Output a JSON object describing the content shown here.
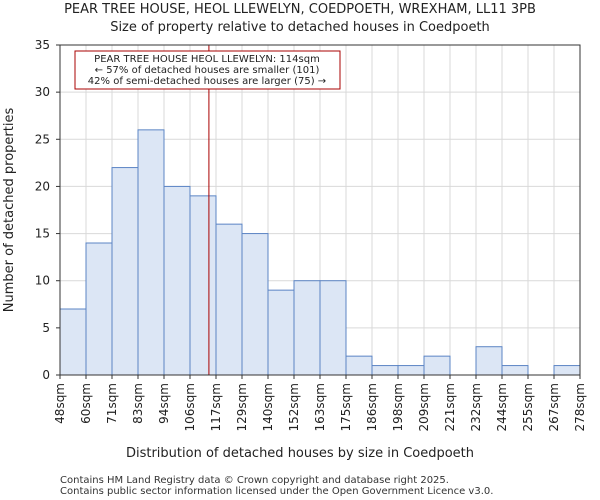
{
  "chart_data": {
    "type": "bar",
    "title_line1": "PEAR TREE HOUSE, HEOL LLEWELYN, COEDPOETH, WREXHAM, LL11 3PB",
    "title_line2": "Size of property relative to detached houses in Coedpoeth",
    "xlabel": "Distribution of detached houses by size in Coedpoeth",
    "ylabel": "Number of detached properties",
    "bin_edges": [
      48,
      60,
      71,
      83,
      94,
      106,
      117,
      129,
      140,
      152,
      163,
      175,
      186,
      198,
      209,
      221,
      232,
      244,
      255,
      267,
      278
    ],
    "tick_labels": [
      "48sqm",
      "60sqm",
      "71sqm",
      "83sqm",
      "94sqm",
      "106sqm",
      "117sqm",
      "129sqm",
      "140sqm",
      "152sqm",
      "163sqm",
      "175sqm",
      "186sqm",
      "198sqm",
      "209sqm",
      "221sqm",
      "232sqm",
      "244sqm",
      "255sqm",
      "267sqm",
      "278sqm"
    ],
    "values": [
      7,
      14,
      22,
      26,
      20,
      19,
      16,
      15,
      9,
      10,
      10,
      2,
      1,
      1,
      2,
      0,
      3,
      1,
      0,
      1
    ],
    "ylim": [
      0,
      35
    ],
    "yticks": [
      0,
      5,
      10,
      15,
      20,
      25,
      30,
      35
    ],
    "marker_value": 114,
    "annotation": [
      "PEAR TREE HOUSE HEOL LLEWELYN: 114sqm",
      "← 57% of detached houses are smaller (101)",
      "42% of semi-detached houses are larger (75) →"
    ],
    "colors": {
      "bar_fill": "#dce6f5",
      "bar_stroke": "#5b84c4",
      "marker": "#aa0000",
      "grid": "#d9d9d9"
    }
  },
  "footer": {
    "line1": "Contains HM Land Registry data © Crown copyright and database right 2025.",
    "line2": "Contains public sector information licensed under the Open Government Licence v3.0."
  }
}
